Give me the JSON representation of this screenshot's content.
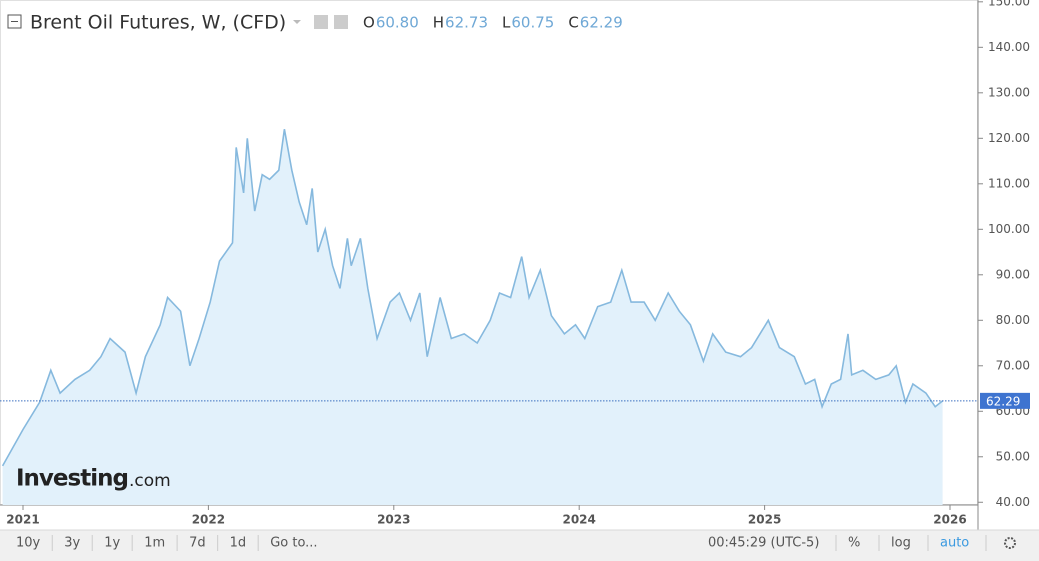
{
  "header": {
    "title": "Brent Oil Futures, W, (CFD)"
  },
  "chart_data": {
    "type": "area",
    "ohlc": [
      {
        "key": "O",
        "value": "60.80"
      },
      {
        "key": "H",
        "value": "62.73"
      },
      {
        "key": "L",
        "value": "60.75"
      },
      {
        "key": "C",
        "value": "62.29"
      }
    ],
    "last": 62.29,
    "color": "#86b9de",
    "fill": "#e2f1fb",
    "grid": false,
    "x": [
      2020.89,
      2021.0,
      2021.09,
      2021.15,
      2021.2,
      2021.28,
      2021.36,
      2021.42,
      2021.47,
      2021.55,
      2021.61,
      2021.66,
      2021.74,
      2021.78,
      2021.85,
      2021.9,
      2021.95,
      2022.01,
      2022.06,
      2022.13,
      2022.15,
      2022.19,
      2022.21,
      2022.25,
      2022.29,
      2022.33,
      2022.38,
      2022.41,
      2022.45,
      2022.49,
      2022.53,
      2022.56,
      2022.59,
      2022.63,
      2022.67,
      2022.71,
      2022.75,
      2022.77,
      2022.82,
      2022.86,
      2022.91,
      2022.98,
      2023.03,
      2023.09,
      2023.14,
      2023.18,
      2023.25,
      2023.31,
      2023.38,
      2023.45,
      2023.52,
      2023.57,
      2023.63,
      2023.69,
      2023.73,
      2023.79,
      2023.85,
      2023.92,
      2023.98,
      2024.03,
      2024.1,
      2024.17,
      2024.23,
      2024.28,
      2024.35,
      2024.41,
      2024.48,
      2024.54,
      2024.6,
      2024.67,
      2024.72,
      2024.79,
      2024.87,
      2024.93,
      2025.02,
      2025.08,
      2025.16,
      2025.22,
      2025.27,
      2025.31,
      2025.36,
      2025.41,
      2025.45,
      2025.47,
      2025.53,
      2025.6,
      2025.67,
      2025.71,
      2025.76,
      2025.8,
      2025.87,
      2025.92,
      2025.96
    ],
    "values": [
      48,
      56,
      62,
      69,
      64,
      67,
      69,
      72,
      76,
      73,
      64,
      72,
      79,
      85,
      82,
      70,
      76,
      84,
      93,
      97,
      118,
      108,
      120,
      104,
      112,
      111,
      113,
      122,
      113,
      106,
      101,
      109,
      95,
      100,
      92,
      87,
      98,
      92,
      98,
      87,
      76,
      84,
      86,
      80,
      86,
      72,
      85,
      76,
      77,
      75,
      80,
      86,
      85,
      94,
      85,
      91,
      81,
      77,
      79,
      76,
      83,
      84,
      91,
      84,
      84,
      80,
      86,
      82,
      79,
      71,
      77,
      73,
      72,
      74,
      80,
      74,
      72,
      66,
      67,
      61,
      66,
      67,
      77,
      68,
      69,
      67,
      68,
      70,
      62,
      66,
      64,
      61,
      62.29
    ],
    "xlim": [
      2020.876,
      2026.151
    ],
    "xticks": [
      2021,
      2022,
      2023,
      2024,
      2025,
      2026
    ],
    "ylim": [
      39.4,
      150.4
    ],
    "yticks": [
      {
        "value": 40,
        "label": "40.00"
      },
      {
        "value": 50,
        "label": "50.00"
      },
      {
        "value": 60,
        "label": "60.00"
      },
      {
        "value": 70,
        "label": "70.00"
      },
      {
        "value": 80,
        "label": "80.00"
      },
      {
        "value": 90,
        "label": "90.00"
      },
      {
        "value": 100,
        "label": "100.00"
      },
      {
        "value": 110,
        "label": "110.00"
      },
      {
        "value": 120,
        "label": "120.00"
      },
      {
        "value": 130,
        "label": "130.00"
      },
      {
        "value": 140,
        "label": "140.00"
      },
      {
        "value": 150,
        "label": "150.00"
      }
    ]
  },
  "logo": {
    "brand": "Investing",
    "suffix": ".com"
  },
  "toolbar": {
    "ranges": [
      "10y",
      "3y",
      "1y",
      "1m",
      "7d",
      "1d",
      "Go to..."
    ],
    "time": "00:45:29 (UTC-5)",
    "options": [
      "%",
      "log",
      "auto"
    ]
  }
}
